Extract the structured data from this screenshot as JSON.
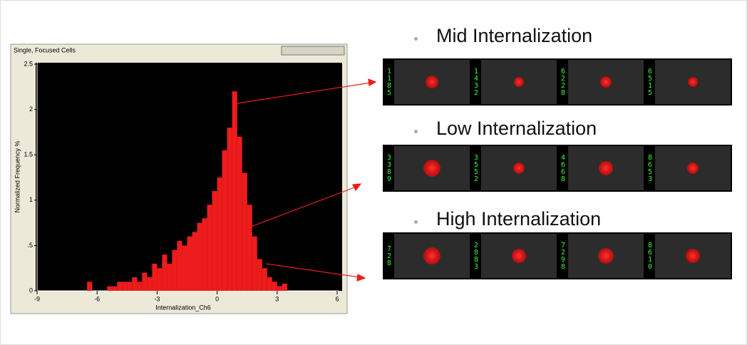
{
  "chart_data": {
    "type": "histogram",
    "window_title": "Single, Focused Cells",
    "x_label": "Internalization_Ch6",
    "y_label": "Normalized Frequency %",
    "color": "#ee1c1c",
    "bins": [
      -6.5,
      -6.25,
      -6,
      -5.75,
      -5.5,
      -5.25,
      -5,
      -4.75,
      -4.5,
      -4.25,
      -4,
      -3.75,
      -3.5,
      -3.25,
      -3,
      -2.75,
      -2.5,
      -2.25,
      -2,
      -1.75,
      -1.5,
      -1.25,
      -1,
      -0.75,
      -0.5,
      -0.25,
      0,
      0.25,
      0.5,
      0.75,
      1,
      1.25,
      1.5,
      1.75,
      2,
      2.25,
      2.5,
      2.75,
      3,
      3.25,
      3.5
    ],
    "values": [
      0.1,
      0,
      0,
      0,
      0.05,
      0.05,
      0.1,
      0.1,
      0.1,
      0.15,
      0.1,
      0.2,
      0.15,
      0.3,
      0.25,
      0.4,
      0.3,
      0.45,
      0.55,
      0.5,
      0.6,
      0.65,
      0.75,
      0.8,
      0.95,
      1.1,
      1.25,
      1.55,
      1.8,
      2.2,
      1.7,
      1.3,
      0.95,
      0.6,
      0.35,
      0.25,
      0.15,
      0.1,
      0.05,
      0.08
    ],
    "xlim": [
      -9,
      6
    ],
    "xticks": [
      -9,
      -6,
      -3,
      0,
      3,
      6
    ],
    "ylim": [
      0,
      2.5
    ],
    "yticks": [
      0,
      {
        "value": 0.5,
        "label": ".5"
      },
      1,
      1.5,
      2,
      2.5
    ]
  },
  "panels": [
    {
      "title": "Mid Internalization",
      "ids": [
        "1185",
        "1432",
        "6228",
        "6515"
      ]
    },
    {
      "title": "Low Internalization",
      "ids": [
        "3389",
        "3552",
        "4668",
        "8653"
      ]
    },
    {
      "title": "High Internalization",
      "ids": [
        "728",
        "2883",
        "7298",
        "8610"
      ]
    }
  ]
}
